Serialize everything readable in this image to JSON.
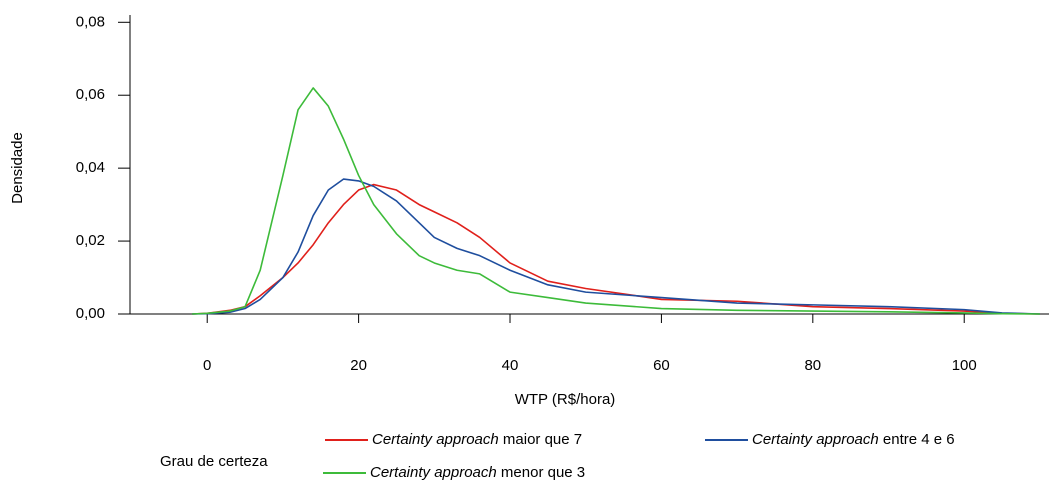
{
  "chart_data": {
    "type": "line",
    "x_label": "WTP (R$/hora)",
    "y_label": "Densidade",
    "legend_title": "Grau de certeza",
    "x": [
      -2,
      0,
      3,
      5,
      7,
      10,
      12,
      14,
      16,
      18,
      20,
      22,
      25,
      28,
      30,
      33,
      36,
      40,
      45,
      50,
      60,
      70,
      80,
      90,
      100,
      105,
      110
    ],
    "series": [
      {
        "name": "Certainty approach maior que 7",
        "color": "#e0201b",
        "values": [
          0,
          0.0002,
          0.001,
          0.002,
          0.005,
          0.01,
          0.014,
          0.019,
          0.025,
          0.03,
          0.034,
          0.0355,
          0.034,
          0.03,
          0.028,
          0.025,
          0.021,
          0.014,
          0.009,
          0.007,
          0.004,
          0.0035,
          0.002,
          0.0015,
          0.0008,
          0.0002,
          0
        ]
      },
      {
        "name": "Certainty approach entre 4 e 6",
        "color": "#1f4e9e",
        "values": [
          0,
          0.0001,
          0.0005,
          0.0015,
          0.004,
          0.01,
          0.017,
          0.027,
          0.034,
          0.037,
          0.0365,
          0.035,
          0.031,
          0.025,
          0.021,
          0.018,
          0.016,
          0.012,
          0.008,
          0.006,
          0.0045,
          0.003,
          0.0025,
          0.002,
          0.0012,
          0.0003,
          0
        ]
      },
      {
        "name": "Certainty approach menor que 3",
        "color": "#3dbb3a",
        "values": [
          0,
          0.0002,
          0.0008,
          0.002,
          0.012,
          0.038,
          0.056,
          0.062,
          0.057,
          0.048,
          0.038,
          0.03,
          0.022,
          0.016,
          0.014,
          0.012,
          0.011,
          0.006,
          0.0045,
          0.003,
          0.0015,
          0.001,
          0.0008,
          0.0006,
          0.0003,
          0.0001,
          0
        ]
      }
    ],
    "xlim": [
      -10.2,
      111.2
    ],
    "ylim": [
      0,
      0.082
    ],
    "xticks": [
      0,
      20,
      40,
      60,
      80,
      100
    ],
    "yticks": [
      {
        "value": 0,
        "label": "0,00"
      },
      {
        "value": 0.02,
        "label": "0,02"
      },
      {
        "value": 0.04,
        "label": "0,04"
      },
      {
        "value": 0.06,
        "label": "0,06"
      },
      {
        "value": 0.08,
        "label": "0,08"
      }
    ],
    "grid": false
  }
}
